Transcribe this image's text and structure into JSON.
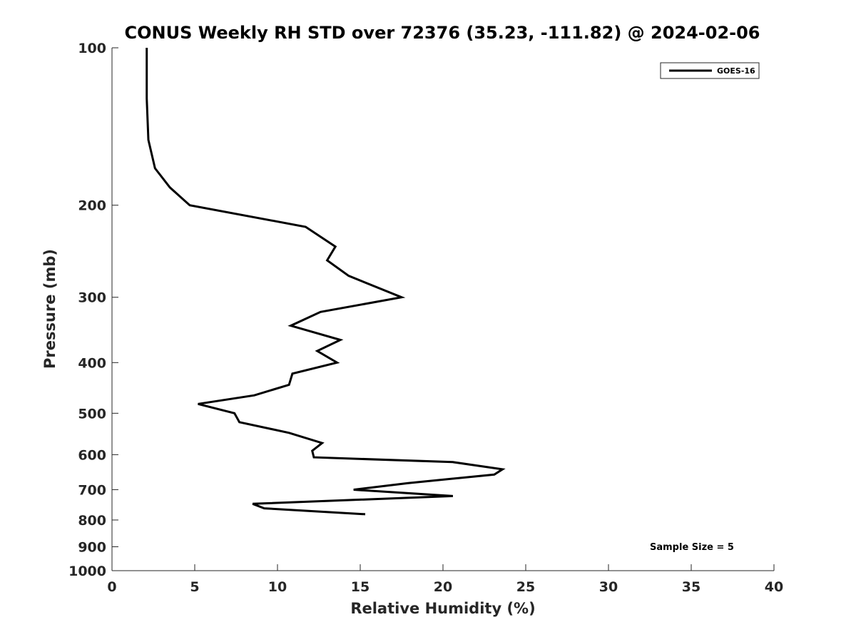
{
  "chart_data": {
    "type": "line",
    "title": "CONUS Weekly RH STD over 72376 (35.23, -111.82) @ 2024-02-06",
    "xlabel": "Relative Humidity (%)",
    "ylabel": "Pressure (mb)",
    "xlim": [
      0,
      40
    ],
    "ylim": [
      100,
      1000
    ],
    "y_scale": "log",
    "y_reversed": true,
    "x_ticks": [
      "0",
      "5",
      "10",
      "15",
      "20",
      "25",
      "30",
      "35",
      "40"
    ],
    "y_ticks": [
      "100",
      "200",
      "300",
      "400",
      "500",
      "600",
      "700",
      "800",
      "900",
      "1000"
    ],
    "grid": false,
    "legend_position": "top-right",
    "annotation": "Sample Size = 5",
    "series": [
      {
        "name": "GOES-16",
        "color": "#000000",
        "points": [
          {
            "x": 2.1,
            "y": 100
          },
          {
            "x": 2.1,
            "y": 125
          },
          {
            "x": 2.2,
            "y": 150
          },
          {
            "x": 2.6,
            "y": 170
          },
          {
            "x": 3.5,
            "y": 185
          },
          {
            "x": 4.7,
            "y": 200
          },
          {
            "x": 11.7,
            "y": 220
          },
          {
            "x": 13.5,
            "y": 240
          },
          {
            "x": 13.0,
            "y": 255
          },
          {
            "x": 14.3,
            "y": 273
          },
          {
            "x": 17.5,
            "y": 300
          },
          {
            "x": 12.6,
            "y": 320
          },
          {
            "x": 10.8,
            "y": 340
          },
          {
            "x": 13.8,
            "y": 362
          },
          {
            "x": 12.4,
            "y": 380
          },
          {
            "x": 13.6,
            "y": 400
          },
          {
            "x": 10.9,
            "y": 420
          },
          {
            "x": 10.7,
            "y": 441
          },
          {
            "x": 8.6,
            "y": 462
          },
          {
            "x": 5.2,
            "y": 480
          },
          {
            "x": 7.4,
            "y": 500
          },
          {
            "x": 7.7,
            "y": 520
          },
          {
            "x": 10.7,
            "y": 545
          },
          {
            "x": 12.7,
            "y": 570
          },
          {
            "x": 12.1,
            "y": 590
          },
          {
            "x": 12.2,
            "y": 607
          },
          {
            "x": 20.6,
            "y": 620
          },
          {
            "x": 23.6,
            "y": 640
          },
          {
            "x": 23.1,
            "y": 655
          },
          {
            "x": 17.9,
            "y": 680
          },
          {
            "x": 14.6,
            "y": 700
          },
          {
            "x": 20.6,
            "y": 720
          },
          {
            "x": 8.5,
            "y": 745
          },
          {
            "x": 9.2,
            "y": 760
          },
          {
            "x": 15.3,
            "y": 780
          }
        ]
      }
    ]
  }
}
